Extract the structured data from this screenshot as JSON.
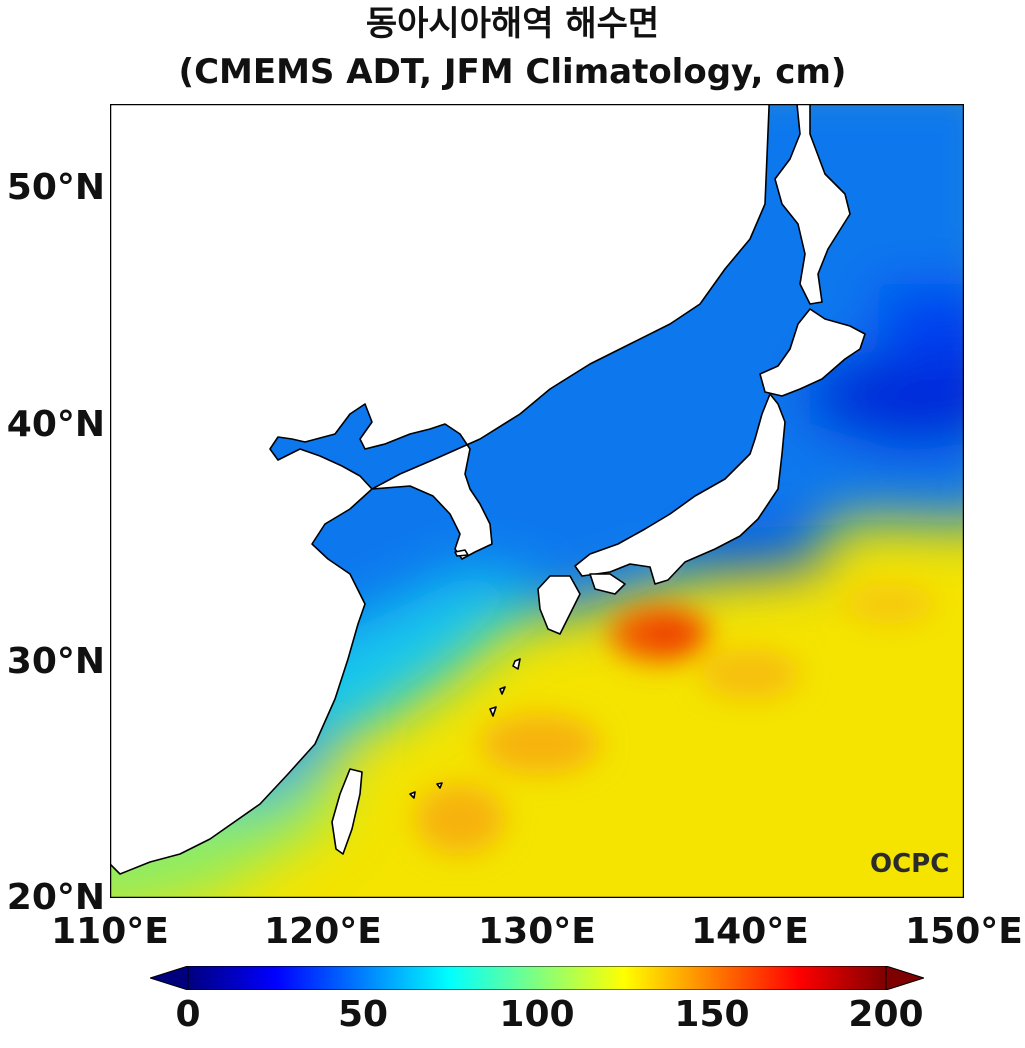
{
  "title": {
    "line1": "동아시아해역 해수면",
    "line2": "(CMEMS ADT, JFM Climatology, cm)"
  },
  "axes": {
    "lon_ticks": [
      "110°E",
      "120°E",
      "130°E",
      "140°E",
      "150°E"
    ],
    "lat_ticks": [
      "50°N",
      "40°N",
      "30°N",
      "20°N"
    ],
    "lon_range": [
      110,
      150
    ],
    "lat_range": [
      20,
      53.5
    ]
  },
  "colorbar": {
    "ticks": [
      "0",
      "50",
      "100",
      "150",
      "200"
    ],
    "range": [
      0,
      200
    ],
    "colormap": "jet",
    "colors": [
      "#00007f",
      "#0000ff",
      "#007fff",
      "#00ffff",
      "#7fff7f",
      "#ffff00",
      "#ff7f00",
      "#ff0000",
      "#7f0000"
    ]
  },
  "logo": "OCPC",
  "colors": {
    "land": "#ffffff",
    "coastline": "#000000"
  }
}
